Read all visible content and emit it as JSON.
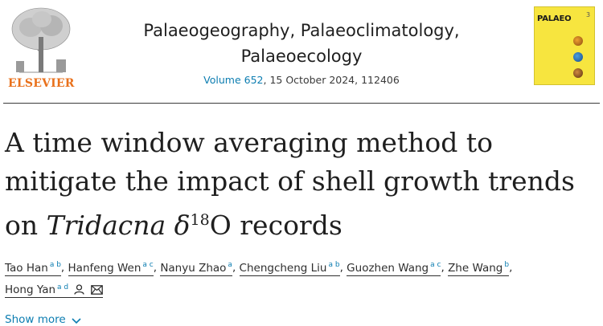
{
  "publisher": {
    "name": "ELSEVIER"
  },
  "journal": {
    "title_line1": "Palaeogeography, Palaeoclimatology,",
    "title_line2": "Palaeoecology",
    "volume_link": "Volume 652",
    "issue_info": ", 15 October 2024, 112406"
  },
  "cover": {
    "label": "PALAEO",
    "number": "3"
  },
  "article": {
    "title_part1": "A time window averaging method to",
    "title_part2": "mitigate the impact of shell growth trends",
    "title_part3_prefix": "on ",
    "title_italic": "Tridacna",
    "title_delta": " δ",
    "title_sup": "18",
    "title_suffix": "O records"
  },
  "authors": [
    {
      "name": "Tao Han",
      "aff": "a b"
    },
    {
      "name": "Hanfeng Wen",
      "aff": "a c"
    },
    {
      "name": "Nanyu Zhao",
      "aff": "a"
    },
    {
      "name": "Chengcheng Liu",
      "aff": "a b"
    },
    {
      "name": "Guozhen Wang",
      "aff": "a c"
    },
    {
      "name": "Zhe Wang",
      "aff": "b"
    },
    {
      "name": "Hong Yan",
      "aff": "a d"
    }
  ],
  "show_more": "Show more",
  "colors": {
    "link": "#0c7db1",
    "elsevier": "#e9711c",
    "cover": "#f7e53f"
  },
  "icons": [
    "person-icon",
    "envelope-icon",
    "chevron-down-icon"
  ]
}
